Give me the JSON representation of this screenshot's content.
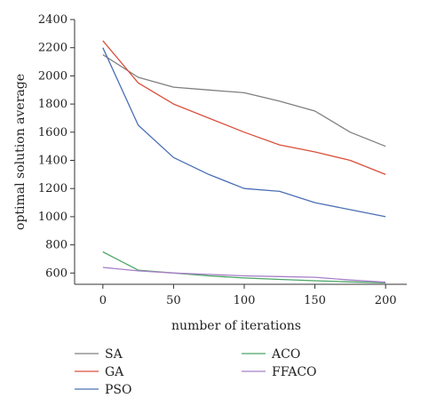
{
  "chart_data": {
    "type": "line",
    "xlabel": "number of iterations",
    "ylabel": "optimal solution average",
    "xlim": [
      -20,
      215
    ],
    "ylim": [
      520,
      2400
    ],
    "xticks": [
      0,
      50,
      100,
      150,
      200
    ],
    "yticks": [
      600,
      800,
      1000,
      1200,
      1400,
      1600,
      1800,
      2000,
      2200,
      2400
    ],
    "grid": false,
    "legend_placement": "bottom",
    "series": [
      {
        "name": "SA",
        "color": "#7f7f7f",
        "x": [
          0,
          25,
          50,
          75,
          100,
          125,
          150,
          175,
          200
        ],
        "y": [
          2150,
          1990,
          1920,
          1900,
          1880,
          1820,
          1750,
          1600,
          1500
        ]
      },
      {
        "name": "GA",
        "color": "#d94f3a",
        "x": [
          0,
          25,
          50,
          75,
          100,
          125,
          150,
          175,
          200
        ],
        "y": [
          2250,
          1950,
          1800,
          1700,
          1600,
          1510,
          1460,
          1400,
          1300
        ]
      },
      {
        "name": "PSO",
        "color": "#4a6fb5",
        "x": [
          0,
          25,
          50,
          75,
          100,
          125,
          150,
          175,
          200
        ],
        "y": [
          2200,
          1650,
          1420,
          1300,
          1200,
          1180,
          1100,
          1050,
          1000
        ]
      },
      {
        "name": "ACO",
        "color": "#4aa564",
        "x": [
          0,
          25,
          50,
          75,
          100,
          125,
          150,
          175,
          200
        ],
        "y": [
          750,
          620,
          600,
          580,
          565,
          555,
          545,
          537,
          530
        ]
      },
      {
        "name": "FFACO",
        "color": "#a77fc8",
        "x": [
          0,
          25,
          50,
          75,
          100,
          125,
          150,
          175,
          200
        ],
        "y": [
          640,
          615,
          600,
          590,
          580,
          575,
          570,
          550,
          535
        ]
      }
    ]
  }
}
